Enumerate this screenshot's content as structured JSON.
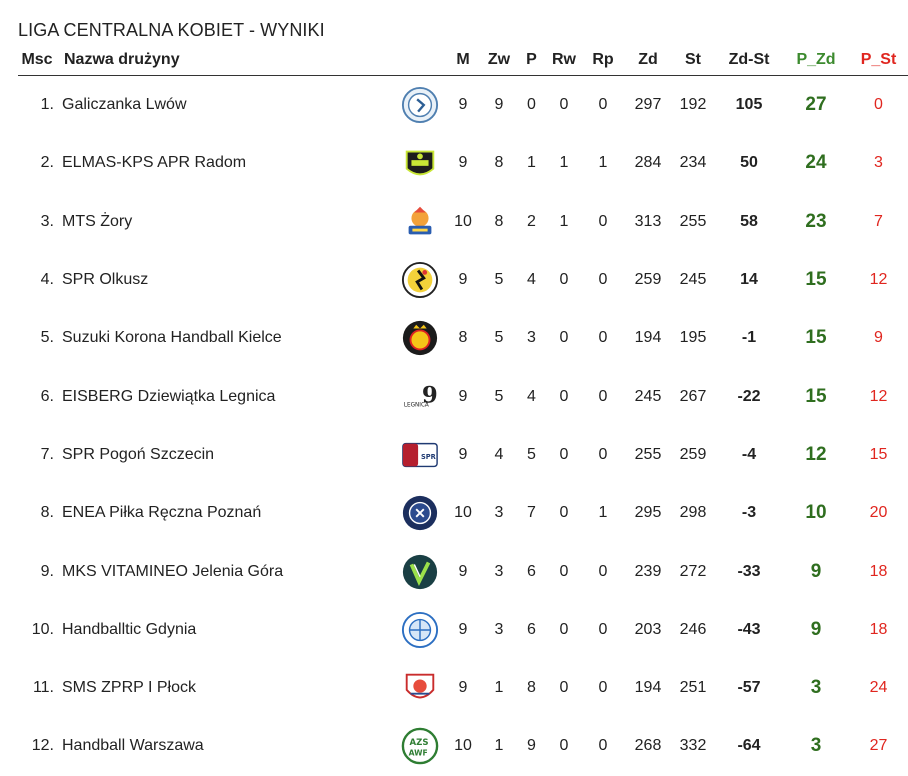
{
  "title": "LIGA CENTRALNA KOBIET - WYNIKI",
  "headers": {
    "msc": "Msc",
    "name": "Nazwa drużyny",
    "m": "M",
    "zw": "Zw",
    "p": "P",
    "rw": "Rw",
    "rp": "Rp",
    "zd": "Zd",
    "st": "St",
    "diff": "Zd-St",
    "pzd": "P_Zd",
    "pst": "P_St"
  },
  "teams": [
    {
      "pos": "1.",
      "name": "Galiczanka Lwów",
      "logo": "galiczanka-logo",
      "m": "9",
      "zw": "9",
      "p": "0",
      "rw": "0",
      "rp": "0",
      "zd": "297",
      "st": "192",
      "diff": "105",
      "pzd": "27",
      "pst": "0"
    },
    {
      "pos": "2.",
      "name": "ELMAS-KPS APR Radom",
      "logo": "radom-logo",
      "m": "9",
      "zw": "8",
      "p": "1",
      "rw": "1",
      "rp": "1",
      "zd": "284",
      "st": "234",
      "diff": "50",
      "pzd": "24",
      "pst": "3"
    },
    {
      "pos": "3.",
      "name": "MTS Żory",
      "logo": "zory-logo",
      "m": "10",
      "zw": "8",
      "p": "2",
      "rw": "1",
      "rp": "0",
      "zd": "313",
      "st": "255",
      "diff": "58",
      "pzd": "23",
      "pst": "7"
    },
    {
      "pos": "4.",
      "name": "SPR Olkusz",
      "logo": "olkusz-logo",
      "m": "9",
      "zw": "5",
      "p": "4",
      "rw": "0",
      "rp": "0",
      "zd": "259",
      "st": "245",
      "diff": "14",
      "pzd": "15",
      "pst": "12"
    },
    {
      "pos": "5.",
      "name": "Suzuki Korona Handball Kielce",
      "logo": "korona-logo",
      "m": "8",
      "zw": "5",
      "p": "3",
      "rw": "0",
      "rp": "0",
      "zd": "194",
      "st": "195",
      "diff": "-1",
      "pzd": "15",
      "pst": "9"
    },
    {
      "pos": "6.",
      "name": "EISBERG Dziewiątka Legnica",
      "logo": "legnica-logo",
      "m": "9",
      "zw": "5",
      "p": "4",
      "rw": "0",
      "rp": "0",
      "zd": "245",
      "st": "267",
      "diff": "-22",
      "pzd": "15",
      "pst": "12"
    },
    {
      "pos": "7.",
      "name": "SPR Pogoń Szczecin",
      "logo": "pogon-logo",
      "m": "9",
      "zw": "4",
      "p": "5",
      "rw": "0",
      "rp": "0",
      "zd": "255",
      "st": "259",
      "diff": "-4",
      "pzd": "12",
      "pst": "15"
    },
    {
      "pos": "8.",
      "name": "ENEA Piłka Ręczna Poznań",
      "logo": "poznan-logo",
      "m": "10",
      "zw": "3",
      "p": "7",
      "rw": "0",
      "rp": "1",
      "zd": "295",
      "st": "298",
      "diff": "-3",
      "pzd": "10",
      "pst": "20"
    },
    {
      "pos": "9.",
      "name": "MKS VITAMINEO Jelenia Góra",
      "logo": "jelenia-logo",
      "m": "9",
      "zw": "3",
      "p": "6",
      "rw": "0",
      "rp": "0",
      "zd": "239",
      "st": "272",
      "diff": "-33",
      "pzd": "9",
      "pst": "18"
    },
    {
      "pos": "10.",
      "name": "Handballtic Gdynia",
      "logo": "gdynia-logo",
      "m": "9",
      "zw": "3",
      "p": "6",
      "rw": "0",
      "rp": "0",
      "zd": "203",
      "st": "246",
      "diff": "-43",
      "pzd": "9",
      "pst": "18"
    },
    {
      "pos": "11.",
      "name": "SMS ZPRP I Płock",
      "logo": "plock-logo",
      "m": "9",
      "zw": "1",
      "p": "8",
      "rw": "0",
      "rp": "0",
      "zd": "194",
      "st": "251",
      "diff": "-57",
      "pzd": "3",
      "pst": "24"
    },
    {
      "pos": "12.",
      "name": "Handball Warszawa",
      "logo": "warszawa-logo",
      "m": "10",
      "zw": "1",
      "p": "9",
      "rw": "0",
      "rp": "0",
      "zd": "268",
      "st": "332",
      "diff": "-64",
      "pzd": "3",
      "pst": "27"
    }
  ],
  "colors": {
    "points": "#2f6e1f",
    "points_header": "#3c8a2e",
    "lost_points": "#e0261f"
  }
}
